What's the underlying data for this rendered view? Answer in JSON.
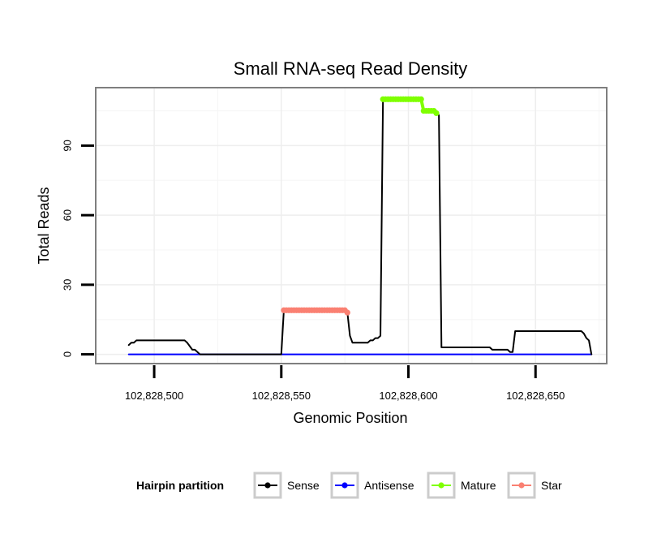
{
  "chart_data": {
    "type": "line",
    "title": "Small RNA-seq Read Density",
    "xlabel": "Genomic Position",
    "ylabel": "Total Reads",
    "xlim": [
      102828477,
      102828678
    ],
    "ylim": [
      -4,
      115
    ],
    "x_ticks": [
      102828500,
      102828550,
      102828600,
      102828650
    ],
    "x_tick_labels": [
      "102,828,500",
      "102,828,550",
      "102,828,600",
      "102,828,650"
    ],
    "y_ticks": [
      0,
      30,
      60,
      90
    ],
    "y_tick_labels": [
      "0",
      "30",
      "60",
      "90"
    ],
    "grid": true,
    "legend": {
      "title": "Hairpin partition",
      "position": "bottom",
      "entries": [
        {
          "name": "Sense",
          "color": "#000000"
        },
        {
          "name": "Antisense",
          "color": "#0000ff"
        },
        {
          "name": "Mature",
          "color": "#7fff00"
        },
        {
          "name": "Star",
          "color": "#fa8072"
        }
      ]
    },
    "series": [
      {
        "name": "Sense",
        "color": "#000000",
        "x": [
          102828490,
          102828491,
          102828492,
          102828493,
          102828494,
          102828512,
          102828513,
          102828515,
          102828516,
          102828518,
          102828550,
          102828551,
          102828552,
          102828575,
          102828576,
          102828577,
          102828578,
          102828584,
          102828585,
          102828586,
          102828587,
          102828588,
          102828589,
          102828590,
          102828605,
          102828606,
          102828611,
          102828612,
          102828613,
          102828632,
          102828633,
          102828639,
          102828640,
          102828641,
          102828642,
          102828668,
          102828669,
          102828670,
          102828671,
          102828672
        ],
        "y": [
          4,
          5,
          5,
          6,
          6,
          6,
          5,
          2,
          2,
          0,
          0,
          19,
          19,
          19,
          18,
          8,
          5,
          5,
          6,
          6,
          7,
          7,
          8,
          110,
          110,
          105,
          105,
          103,
          3,
          3,
          2,
          2,
          1,
          1,
          10,
          10,
          9,
          7,
          6,
          0
        ]
      },
      {
        "name": "Antisense",
        "color": "#0000ff",
        "x": [
          102828490,
          102828672
        ],
        "y": [
          0,
          0
        ]
      },
      {
        "name": "Mature",
        "color": "#7fff00",
        "x": [
          102828590,
          102828591,
          102828592,
          102828593,
          102828594,
          102828595,
          102828596,
          102828597,
          102828598,
          102828599,
          102828600,
          102828601,
          102828602,
          102828603,
          102828604,
          102828605,
          102828606,
          102828607,
          102828608,
          102828609,
          102828610,
          102828611
        ],
        "y": [
          110,
          110,
          110,
          110,
          110,
          110,
          110,
          110,
          110,
          110,
          110,
          110,
          110,
          110,
          110,
          110,
          105,
          105,
          105,
          105,
          105,
          104
        ]
      },
      {
        "name": "Star",
        "color": "#fa8072",
        "x": [
          102828551,
          102828552,
          102828553,
          102828554,
          102828555,
          102828556,
          102828557,
          102828558,
          102828559,
          102828560,
          102828561,
          102828562,
          102828563,
          102828564,
          102828565,
          102828566,
          102828567,
          102828568,
          102828569,
          102828570,
          102828571,
          102828572,
          102828573,
          102828574,
          102828575,
          102828576
        ],
        "y": [
          19,
          19,
          19,
          19,
          19,
          19,
          19,
          19,
          19,
          19,
          19,
          19,
          19,
          19,
          19,
          19,
          19,
          19,
          19,
          19,
          19,
          19,
          19,
          19,
          19,
          18
        ]
      }
    ]
  }
}
